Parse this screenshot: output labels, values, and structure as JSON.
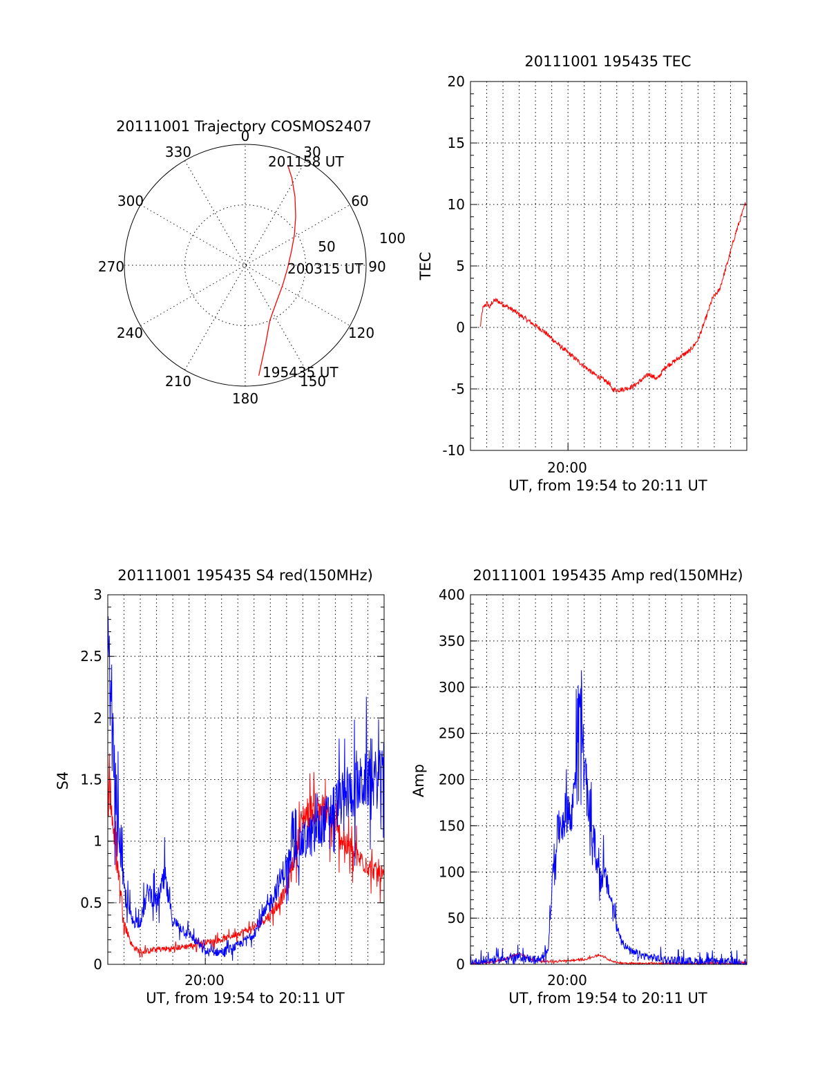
{
  "colors": {
    "red": "#ff0000",
    "blue": "#0000ff",
    "axes": "#000000"
  },
  "chart_data": [
    {
      "type": "polar",
      "title": "20111001 Trajectory COSMOS2407",
      "angle_labels": [
        "0",
        "30",
        "60",
        "90",
        "120",
        "150",
        "180",
        "210",
        "240",
        "270",
        "300",
        "330"
      ],
      "radial_labels": [
        "50",
        "100"
      ],
      "rlim": [
        0,
        100
      ],
      "grid": true,
      "annotations": [
        "201158 UT",
        "200315 UT",
        "195435 UT"
      ],
      "series": [
        {
          "color": "#ff0000",
          "points": [
            {
              "az": 173,
              "zen": 92
            },
            {
              "az": 170,
              "zen": 80
            },
            {
              "az": 165,
              "zen": 66
            },
            {
              "az": 156,
              "zen": 50
            },
            {
              "az": 140,
              "zen": 40
            },
            {
              "az": 118,
              "zen": 35
            },
            {
              "az": 95,
              "zen": 35
            },
            {
              "az": 73,
              "zen": 40
            },
            {
              "az": 58,
              "zen": 48
            },
            {
              "az": 46,
              "zen": 58
            },
            {
              "az": 36,
              "zen": 70
            },
            {
              "az": 28,
              "zen": 82
            },
            {
              "az": 23,
              "zen": 90
            }
          ]
        }
      ]
    },
    {
      "type": "line",
      "title": "20111001 195435 TEC",
      "xlabel": "UT, from 19:54 to 20:11 UT",
      "ylabel": "TEC",
      "xlim": [
        0,
        17
      ],
      "ylim": [
        -10,
        20
      ],
      "yticks": [
        "-10",
        "-5",
        "0",
        "5",
        "10",
        "15",
        "20"
      ],
      "xtick_label": "20:00",
      "grid": true,
      "series": [
        {
          "color": "#ff0000",
          "noise": 0.2,
          "x": [
            0.6,
            0.75,
            0.9,
            1.0,
            1.2,
            1.3,
            1.5,
            1.6,
            2.5,
            3.5,
            4.5,
            5.5,
            6.5,
            7.5,
            8.6,
            8.65,
            9.0,
            9.5,
            10.0,
            10.5,
            11.0,
            11.5,
            12.0,
            12.5,
            13.0,
            13.5,
            14.0,
            14.5,
            14.9,
            15.3,
            15.8,
            16.3,
            16.7,
            16.95
          ],
          "y": [
            0.0,
            1.5,
            1.8,
            2.0,
            1.6,
            2.0,
            2.2,
            2.2,
            1.5,
            0.6,
            -0.3,
            -1.5,
            -2.6,
            -3.7,
            -4.6,
            -5.0,
            -5.1,
            -5.0,
            -4.8,
            -4.3,
            -3.8,
            -4.2,
            -3.2,
            -2.8,
            -2.3,
            -1.9,
            -1.0,
            0.8,
            2.4,
            3.0,
            5.2,
            7.6,
            9.2,
            10.2
          ]
        }
      ]
    },
    {
      "type": "line",
      "title": "20111001 195435 S4 red(150MHz)",
      "xlabel": "UT, from 19:54 to 20:11 UT",
      "ylabel": "S4",
      "xlim": [
        0,
        17
      ],
      "ylim": [
        0,
        3
      ],
      "yticks": [
        "0",
        "0.5",
        "1",
        "1.5",
        "2",
        "2.5",
        "3"
      ],
      "xtick_label": "20:00",
      "grid": true,
      "series": [
        {
          "color": "#ff0000",
          "noise": 0.08,
          "x": [
            0,
            0.2,
            0.5,
            0.8,
            1.0,
            1.5,
            2.0,
            3.0,
            4.0,
            5.0,
            6.0,
            7.0,
            8.0,
            9.0,
            10.0,
            11.0,
            11.5,
            12.0,
            13.0,
            14.0,
            15.0,
            16.0,
            17.0
          ],
          "y": [
            1.5,
            1.3,
            0.9,
            0.6,
            0.35,
            0.15,
            0.1,
            0.12,
            0.13,
            0.15,
            0.18,
            0.2,
            0.25,
            0.3,
            0.4,
            0.6,
            0.9,
            1.2,
            1.3,
            1.1,
            0.9,
            0.8,
            0.7
          ]
        },
        {
          "color": "#0000ff",
          "noise": 0.12,
          "x": [
            0,
            0.2,
            0.5,
            0.8,
            1.0,
            1.5,
            2.0,
            2.5,
            3.0,
            3.5,
            4.0,
            5.0,
            6.0,
            7.0,
            8.0,
            9.0,
            10.0,
            11.0,
            12.0,
            13.0,
            14.0,
            15.0,
            16.0,
            17.0
          ],
          "y": [
            2.5,
            2.0,
            1.4,
            0.9,
            0.6,
            0.35,
            0.35,
            0.6,
            0.5,
            0.7,
            0.35,
            0.25,
            0.1,
            0.1,
            0.15,
            0.25,
            0.5,
            0.8,
            1.0,
            1.1,
            1.3,
            1.4,
            1.5,
            1.5
          ]
        }
      ]
    },
    {
      "type": "line",
      "title": "20111001 195435 Amp red(150MHz)",
      "xlabel": "UT, from 19:54 to 20:11 UT",
      "ylabel": "Amp",
      "xlim": [
        0,
        17
      ],
      "ylim": [
        0,
        400
      ],
      "yticks": [
        "0",
        "50",
        "100",
        "150",
        "200",
        "250",
        "300",
        "350",
        "400"
      ],
      "xtick_label": "20:00",
      "grid": true,
      "series": [
        {
          "color": "#ff0000",
          "noise": 3,
          "x": [
            0,
            1,
            2,
            2.5,
            3.0,
            3.3,
            3.6,
            4,
            5,
            6,
            7,
            7.5,
            8.0,
            8.5,
            9,
            10,
            11,
            12,
            13,
            14,
            15,
            16,
            17
          ],
          "y": [
            1,
            2,
            4,
            8,
            12,
            9,
            6,
            4,
            3,
            4,
            5,
            8,
            10,
            5,
            2,
            1,
            1,
            1,
            1,
            1,
            1,
            1,
            1
          ]
        },
        {
          "color": "#0000ff",
          "noise": 15,
          "x": [
            0,
            1,
            2,
            3,
            4,
            4.5,
            4.8,
            5.0,
            5.2,
            5.5,
            5.8,
            6.0,
            6.2,
            6.4,
            6.6,
            6.8,
            7.0,
            7.2,
            7.5,
            7.8,
            8.0,
            8.2,
            8.5,
            8.8,
            9.0,
            9.5,
            10,
            11,
            12,
            14,
            17
          ],
          "y": [
            2,
            4,
            6,
            8,
            5,
            5,
            20,
            80,
            130,
            150,
            160,
            175,
            150,
            200,
            260,
            290,
            210,
            180,
            140,
            110,
            90,
            100,
            80,
            60,
            40,
            20,
            12,
            8,
            5,
            3,
            2
          ]
        }
      ]
    }
  ]
}
